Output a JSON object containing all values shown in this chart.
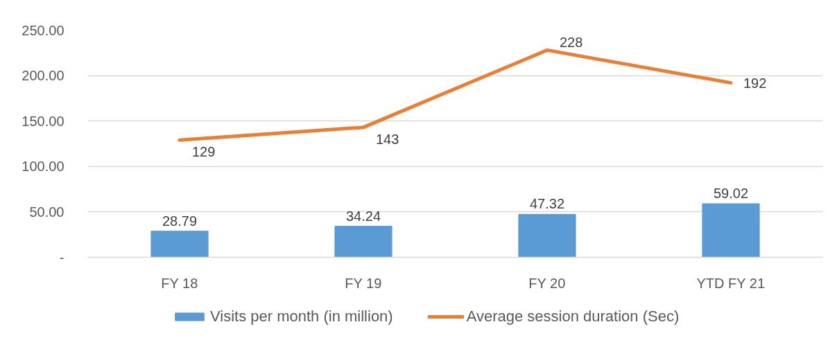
{
  "chart_data": {
    "type": "bar",
    "categories": [
      "FY 18",
      "FY 19",
      "FY 20",
      "YTD FY 21"
    ],
    "series": [
      {
        "name": "Visits per month (in million)",
        "color": "#5b9bd5",
        "values": [
          28.79,
          34.24,
          47.32,
          59.02
        ]
      },
      {
        "name": "Average session duration (Sec)",
        "type": "line",
        "color": "#ed7d31",
        "values": [
          129,
          143,
          228,
          192
        ]
      }
    ],
    "ylim": [
      0,
      250
    ],
    "yticks": [
      {
        "value": 0,
        "label": "-"
      },
      {
        "value": 50,
        "label": "50.00"
      },
      {
        "value": 100,
        "label": "100.00"
      },
      {
        "value": 150,
        "label": "150.00"
      },
      {
        "value": 200,
        "label": "200.00"
      },
      {
        "value": 250,
        "label": "250.00"
      }
    ],
    "grid": "y",
    "legend": "bottom",
    "data_labels": true
  }
}
